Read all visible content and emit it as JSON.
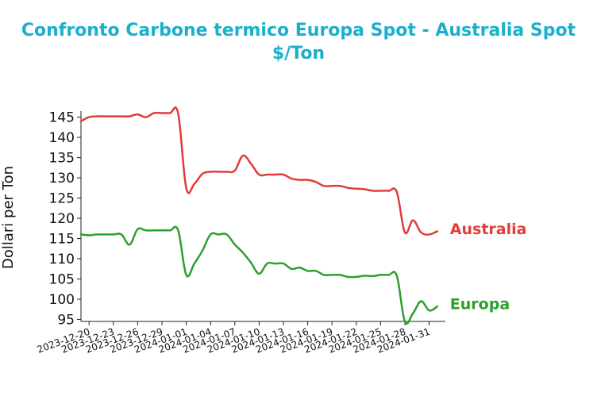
{
  "chart_data": {
    "type": "line",
    "title_lines": [
      "Confronto Carbone termico Europa Spot - Australia Spot",
      "$/Ton"
    ],
    "xlabel": "",
    "ylabel": "Dollari per Ton",
    "ylim": [
      94.5,
      146.5
    ],
    "yticks": [
      95,
      100,
      105,
      110,
      115,
      120,
      125,
      130,
      135,
      140,
      145
    ],
    "xticks": [
      "2023-12-20",
      "2023-12-23",
      "2023-12-26",
      "2023-12-29",
      "2024-01-01",
      "2024-01-04",
      "2024-01-07",
      "2024-01-10",
      "2024-01-13",
      "2024-01-16",
      "2024-01-19",
      "2024-01-22",
      "2024-01-25",
      "2024-01-28",
      "2024-01-31"
    ],
    "xlim": [
      "2023-12-19",
      "2024-02-02"
    ],
    "grid": false,
    "legend": "inline labels at right end of lines",
    "series": [
      {
        "name": "Australia",
        "color": "#e03c3a",
        "points": [
          [
            "2023-12-19",
            144.0
          ],
          [
            "2023-12-20",
            145.0
          ],
          [
            "2023-12-21",
            145.2
          ],
          [
            "2023-12-22",
            145.2
          ],
          [
            "2023-12-23",
            145.2
          ],
          [
            "2023-12-24",
            145.2
          ],
          [
            "2023-12-25",
            145.2
          ],
          [
            "2023-12-26",
            145.7
          ],
          [
            "2023-12-27",
            145.0
          ],
          [
            "2023-12-28",
            146.0
          ],
          [
            "2023-12-29",
            146.0
          ],
          [
            "2023-12-30",
            146.0
          ],
          [
            "2023-12-31",
            145.9
          ],
          [
            "2024-01-01",
            127.5
          ],
          [
            "2024-01-02",
            128.5
          ],
          [
            "2024-01-03",
            131.0
          ],
          [
            "2024-01-04",
            131.5
          ],
          [
            "2024-01-05",
            131.5
          ],
          [
            "2024-01-06",
            131.5
          ],
          [
            "2024-01-07",
            131.8
          ],
          [
            "2024-01-08",
            135.5
          ],
          [
            "2024-01-09",
            133.5
          ],
          [
            "2024-01-10",
            130.8
          ],
          [
            "2024-01-11",
            130.8
          ],
          [
            "2024-01-12",
            130.8
          ],
          [
            "2024-01-13",
            130.8
          ],
          [
            "2024-01-14",
            129.8
          ],
          [
            "2024-01-15",
            129.5
          ],
          [
            "2024-01-16",
            129.5
          ],
          [
            "2024-01-17",
            129.0
          ],
          [
            "2024-01-18",
            128.0
          ],
          [
            "2024-01-19",
            128.0
          ],
          [
            "2024-01-20",
            128.0
          ],
          [
            "2024-01-21",
            127.5
          ],
          [
            "2024-01-22",
            127.3
          ],
          [
            "2024-01-23",
            127.2
          ],
          [
            "2024-01-24",
            126.8
          ],
          [
            "2024-01-25",
            126.8
          ],
          [
            "2024-01-26",
            126.8
          ],
          [
            "2024-01-27",
            126.5
          ],
          [
            "2024-01-28",
            116.5
          ],
          [
            "2024-01-29",
            119.5
          ],
          [
            "2024-01-30",
            116.5
          ],
          [
            "2024-01-31",
            116.0
          ],
          [
            "2024-02-01",
            116.8
          ]
        ]
      },
      {
        "name": "Europa",
        "color": "#2ca02c",
        "points": [
          [
            "2023-12-19",
            116.0
          ],
          [
            "2023-12-20",
            115.8
          ],
          [
            "2023-12-21",
            116.0
          ],
          [
            "2023-12-22",
            116.0
          ],
          [
            "2023-12-23",
            116.0
          ],
          [
            "2023-12-24",
            116.0
          ],
          [
            "2023-12-25",
            113.5
          ],
          [
            "2023-12-26",
            117.3
          ],
          [
            "2023-12-27",
            117.0
          ],
          [
            "2023-12-28",
            117.0
          ],
          [
            "2023-12-29",
            117.0
          ],
          [
            "2023-12-30",
            117.0
          ],
          [
            "2023-12-31",
            117.0
          ],
          [
            "2024-01-01",
            106.0
          ],
          [
            "2024-01-02",
            108.8
          ],
          [
            "2024-01-03",
            112.0
          ],
          [
            "2024-01-04",
            116.0
          ],
          [
            "2024-01-05",
            116.0
          ],
          [
            "2024-01-06",
            116.0
          ],
          [
            "2024-01-07",
            113.5
          ],
          [
            "2024-01-08",
            111.5
          ],
          [
            "2024-01-09",
            109.0
          ],
          [
            "2024-01-10",
            106.3
          ],
          [
            "2024-01-11",
            108.8
          ],
          [
            "2024-01-12",
            108.8
          ],
          [
            "2024-01-13",
            108.8
          ],
          [
            "2024-01-14",
            107.5
          ],
          [
            "2024-01-15",
            107.8
          ],
          [
            "2024-01-16",
            107.0
          ],
          [
            "2024-01-17",
            107.0
          ],
          [
            "2024-01-18",
            106.0
          ],
          [
            "2024-01-19",
            106.0
          ],
          [
            "2024-01-20",
            106.0
          ],
          [
            "2024-01-21",
            105.5
          ],
          [
            "2024-01-22",
            105.5
          ],
          [
            "2024-01-23",
            105.8
          ],
          [
            "2024-01-24",
            105.7
          ],
          [
            "2024-01-25",
            106.0
          ],
          [
            "2024-01-26",
            106.0
          ],
          [
            "2024-01-27",
            105.8
          ],
          [
            "2024-01-28",
            94.5
          ],
          [
            "2024-01-29",
            96.5
          ],
          [
            "2024-01-30",
            99.5
          ],
          [
            "2024-01-31",
            97.2
          ],
          [
            "2024-02-01",
            98.2
          ]
        ]
      }
    ]
  }
}
